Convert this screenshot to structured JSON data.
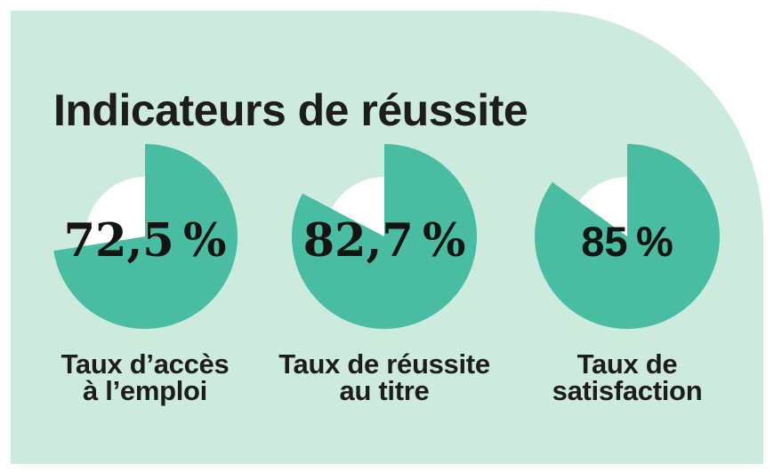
{
  "title": "Indicateurs de réussite",
  "colors": {
    "page_background": "#ffffff",
    "panel_background": "#cdebdd",
    "pie_fill": "#49bda1",
    "pie_remainder": "#ffffff",
    "text": "#1d1d1b"
  },
  "chart_data": [
    {
      "type": "pie",
      "value": 72.5,
      "value_label": "72,5 %",
      "label": "Taux d’accès à l’emploi",
      "label_lines": [
        "Taux d’accès",
        "à l’emploi"
      ],
      "segments": [
        {
          "name": "taux-atteint",
          "value": 72.5
        },
        {
          "name": "reste",
          "value": 27.5
        }
      ],
      "start_angle_deg": 0,
      "direction": "clockwise"
    },
    {
      "type": "pie",
      "value": 82.7,
      "value_label": "82,7 %",
      "label": "Taux de réussite au titre",
      "label_lines": [
        "Taux de réussite",
        "au titre"
      ],
      "segments": [
        {
          "name": "taux-atteint",
          "value": 82.7
        },
        {
          "name": "reste",
          "value": 17.3
        }
      ],
      "start_angle_deg": 0,
      "direction": "clockwise"
    },
    {
      "type": "pie",
      "value": 85,
      "value_label": "85 %",
      "label": "Taux de satisfaction",
      "label_lines": [
        "Taux de",
        "satisfaction"
      ],
      "segments": [
        {
          "name": "taux-atteint",
          "value": 85
        },
        {
          "name": "reste",
          "value": 15
        }
      ],
      "start_angle_deg": 0,
      "direction": "clockwise"
    }
  ]
}
